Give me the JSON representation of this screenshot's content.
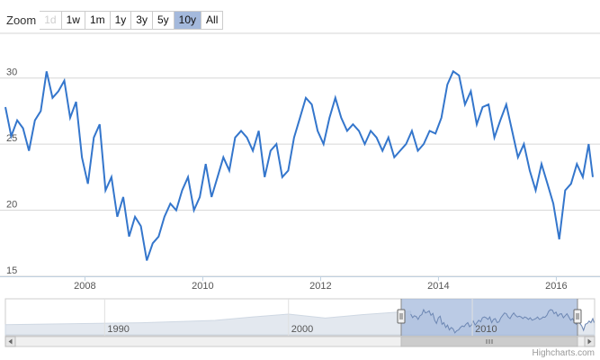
{
  "zoom": {
    "label": "Zoom",
    "buttons": [
      {
        "label": "1d",
        "state": "disabled"
      },
      {
        "label": "1w",
        "state": "normal"
      },
      {
        "label": "1m",
        "state": "normal"
      },
      {
        "label": "1y",
        "state": "normal"
      },
      {
        "label": "3y",
        "state": "normal"
      },
      {
        "label": "5y",
        "state": "normal"
      },
      {
        "label": "10y",
        "state": "active"
      },
      {
        "label": "All",
        "state": "normal"
      }
    ]
  },
  "credit": "Highcharts.com",
  "colors": {
    "line": "#3476cc",
    "grid": "#d6d6d6",
    "nav_selected": "#a4b9dc",
    "nav_area": "#e3e8ef"
  },
  "chart_data": {
    "type": "line",
    "title": "",
    "xlabel": "",
    "ylabel": "",
    "x_ticks": [
      "2008",
      "2010",
      "2012",
      "2014",
      "2016"
    ],
    "y_ticks": [
      15,
      20,
      25,
      30
    ],
    "ylim": [
      15,
      31
    ],
    "xlim": [
      2006.65,
      2016.65
    ],
    "grid": true,
    "series": [
      {
        "x": [
          2006.65,
          2006.75,
          2006.85,
          2006.95,
          2007.05,
          2007.15,
          2007.25,
          2007.35,
          2007.45,
          2007.55,
          2007.65,
          2007.75,
          2007.85,
          2007.95,
          2008.05,
          2008.15,
          2008.25,
          2008.35,
          2008.45,
          2008.55,
          2008.65,
          2008.75,
          2008.85,
          2008.95,
          2009.05,
          2009.15,
          2009.25,
          2009.35,
          2009.45,
          2009.55,
          2009.65,
          2009.75,
          2009.85,
          2009.95,
          2010.05,
          2010.15,
          2010.25,
          2010.35,
          2010.45,
          2010.55,
          2010.65,
          2010.75,
          2010.85,
          2010.95,
          2011.05,
          2011.15,
          2011.25,
          2011.35,
          2011.45,
          2011.55,
          2011.65,
          2011.75,
          2011.85,
          2011.95,
          2012.05,
          2012.15,
          2012.25,
          2012.35,
          2012.45,
          2012.55,
          2012.65,
          2012.75,
          2012.85,
          2012.95,
          2013.05,
          2013.15,
          2013.25,
          2013.35,
          2013.45,
          2013.55,
          2013.65,
          2013.75,
          2013.85,
          2013.95,
          2014.05,
          2014.15,
          2014.25,
          2014.35,
          2014.45,
          2014.55,
          2014.65,
          2014.75,
          2014.85,
          2014.95,
          2015.05,
          2015.15,
          2015.25,
          2015.35,
          2015.45,
          2015.55,
          2015.65,
          2015.75,
          2015.85,
          2015.95,
          2016.05,
          2016.15,
          2016.25,
          2016.35,
          2016.45,
          2016.55,
          2016.62
        ],
        "values": [
          27.8,
          25.6,
          26.8,
          26.2,
          24.5,
          26.8,
          27.5,
          30.5,
          28.5,
          29.0,
          29.8,
          27.0,
          28.2,
          24.0,
          22.0,
          25.5,
          26.5,
          21.5,
          22.5,
          19.5,
          21.0,
          18.0,
          19.5,
          18.8,
          16.2,
          17.5,
          18.0,
          19.5,
          20.5,
          20.0,
          21.5,
          22.5,
          20.0,
          21.0,
          23.5,
          21.0,
          22.5,
          24.0,
          23.0,
          25.5,
          26.0,
          25.5,
          24.5,
          26.0,
          22.5,
          24.5,
          25.0,
          22.5,
          23.0,
          25.5,
          27.0,
          28.5,
          28.0,
          26.0,
          25.0,
          27.0,
          28.5,
          27.0,
          26.0,
          26.5,
          26.0,
          25.0,
          26.0,
          25.5,
          24.5,
          25.5,
          24.0,
          24.5,
          25.0,
          26.0,
          24.5,
          25.0,
          26.0,
          25.8,
          27.0,
          29.5,
          30.5,
          30.2,
          28.0,
          29.0,
          26.5,
          27.8,
          28.0,
          25.5,
          26.8,
          28.0,
          26.0,
          24.0,
          25.0,
          23.0,
          21.5,
          23.5,
          22.0,
          20.5,
          17.8,
          21.5,
          22.0,
          23.5,
          22.5,
          25.0,
          22.5
        ]
      }
    ],
    "navigator": {
      "x_ticks": [
        "1990",
        "2000",
        "2010"
      ],
      "selected_range": [
        2006.65,
        2016.65
      ],
      "full_range": [
        1984.6,
        2016.65
      ]
    }
  }
}
